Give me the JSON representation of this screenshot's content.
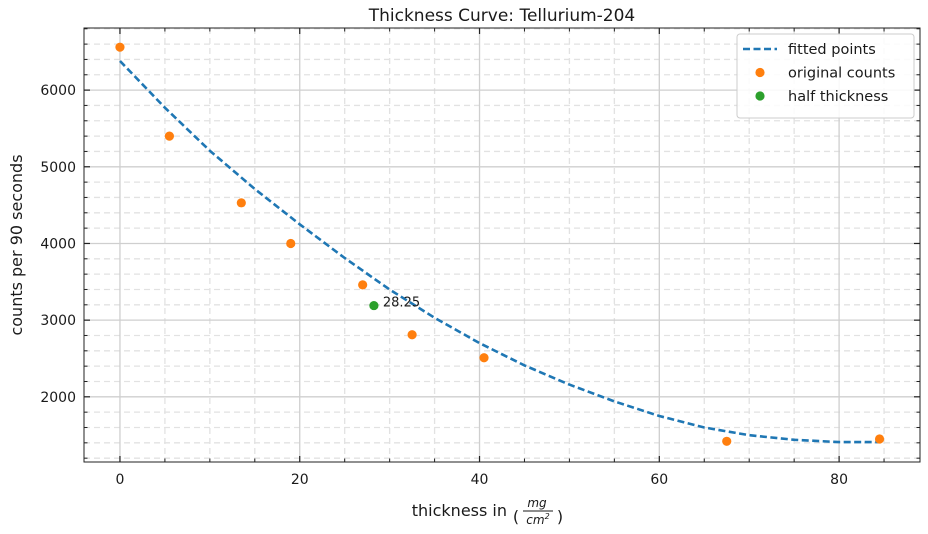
{
  "chart_data": {
    "type": "scatter",
    "title": "Thickness Curve: Tellurium-204",
    "xlabel_prefix": "thickness in",
    "xlabel_unit_num": "mg",
    "xlabel_unit_den": "cm",
    "xlabel_unit_exp": "2",
    "ylabel": "counts per 90 seconds",
    "xlim": [
      -4,
      89
    ],
    "ylim": [
      1150,
      6810
    ],
    "x_ticks": [
      0,
      20,
      40,
      60,
      80
    ],
    "x_tick_labels": [
      "0",
      "20",
      "40",
      "60",
      "80"
    ],
    "y_ticks": [
      2000,
      3000,
      4000,
      5000,
      6000
    ],
    "y_tick_labels": [
      "2000",
      "3000",
      "4000",
      "5000",
      "6000"
    ],
    "grid": true,
    "legend_position": "top-right",
    "series": [
      {
        "name": "fitted points",
        "style": "dashed-line",
        "color": "#1f77b4",
        "x": [
          0,
          5,
          10,
          15,
          20,
          25,
          30,
          35,
          40,
          45,
          50,
          55,
          60,
          65,
          70,
          75,
          80,
          84.5
        ],
        "y": [
          6380,
          5770,
          5210,
          4710,
          4250,
          3810,
          3400,
          3030,
          2700,
          2410,
          2160,
          1940,
          1750,
          1600,
          1500,
          1440,
          1410,
          1410
        ]
      },
      {
        "name": "original counts",
        "style": "points",
        "color": "#ff7f0e",
        "x": [
          0,
          5.5,
          13.5,
          19,
          27,
          32.5,
          40.5,
          67.5,
          84.5
        ],
        "y": [
          6560,
          5400,
          4530,
          4000,
          3460,
          2810,
          2510,
          1420,
          1450
        ]
      },
      {
        "name": "half thickness",
        "style": "points",
        "color": "#2ca02c",
        "x": [
          28.25
        ],
        "y": [
          3190
        ]
      }
    ],
    "annotations": [
      {
        "text": "28.25",
        "x": 28.25,
        "y": 3190
      }
    ]
  }
}
